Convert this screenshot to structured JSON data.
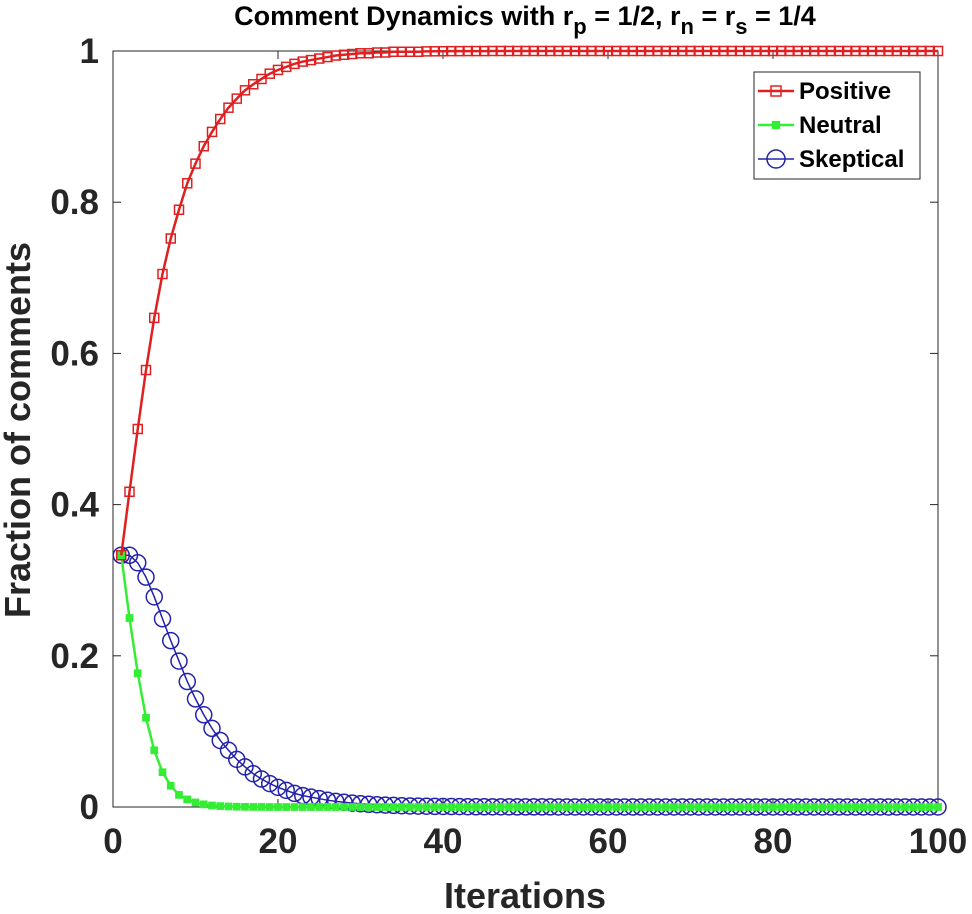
{
  "chart_data": {
    "type": "line",
    "title": {
      "prefix": "Comment Dynamics with r",
      "sub_p": "p",
      "mid1": " = 1/2, r",
      "sub_n": "n",
      "mid2": " = r",
      "sub_s": "s",
      "suffix": " = 1/4"
    },
    "xlabel": "Iterations",
    "ylabel": "Fraction of comments",
    "xlim": [
      0,
      100
    ],
    "ylim": [
      0,
      1
    ],
    "xticks": [
      0,
      20,
      40,
      60,
      80,
      100
    ],
    "yticks": [
      0,
      0.2,
      0.4,
      0.6,
      0.8,
      1
    ],
    "ytick_labels": [
      "0",
      "0.2",
      "0.4",
      "0.6",
      "0.8",
      "1"
    ],
    "grid": false,
    "box": true,
    "legend_position": "top-right",
    "x_points": "1 to 100, step 1",
    "series": [
      {
        "name": "Positive",
        "color": "#e02020",
        "marker": "square",
        "line_width": 2.5,
        "values": [
          0.333,
          0.417,
          0.5,
          0.578,
          0.647,
          0.705,
          0.752,
          0.79,
          0.825,
          0.851,
          0.874,
          0.893,
          0.91,
          0.925,
          0.937,
          0.948,
          0.956,
          0.963,
          0.97,
          0.975,
          0.979,
          0.983,
          0.986,
          0.988,
          0.99,
          0.992,
          0.994,
          0.995,
          0.996,
          0.997,
          0.997,
          0.998,
          0.998,
          0.999,
          0.999,
          0.999,
          0.999,
          0.9995,
          0.9996,
          0.9997,
          0.9998,
          0.9998,
          0.9999,
          0.9999,
          0.9999,
          1,
          1,
          1,
          1,
          1,
          1,
          1,
          1,
          1,
          1,
          1,
          1,
          1,
          1,
          1,
          1,
          1,
          1,
          1,
          1,
          1,
          1,
          1,
          1,
          1,
          1,
          1,
          1,
          1,
          1,
          1,
          1,
          1,
          1,
          1,
          1,
          1,
          1,
          1,
          1,
          1,
          1,
          1,
          1,
          1,
          1,
          1,
          1,
          1,
          1,
          1,
          1,
          1,
          1,
          1
        ]
      },
      {
        "name": "Neutral",
        "color": "#33ee33",
        "marker": "filled-square",
        "line_width": 2.5,
        "values": [
          0.333,
          0.25,
          0.177,
          0.118,
          0.075,
          0.046,
          0.028,
          0.016,
          0.01,
          0.006,
          0.0035,
          0.002,
          0.0012,
          0.0007,
          0.0004,
          0.0002,
          0.0001,
          0.0001,
          0,
          0,
          0,
          0,
          0,
          0,
          0,
          0,
          0,
          0,
          0,
          0,
          0,
          0,
          0,
          0,
          0,
          0,
          0,
          0,
          0,
          0,
          0,
          0,
          0,
          0,
          0,
          0,
          0,
          0,
          0,
          0,
          0,
          0,
          0,
          0,
          0,
          0,
          0,
          0,
          0,
          0,
          0,
          0,
          0,
          0,
          0,
          0,
          0,
          0,
          0,
          0,
          0,
          0,
          0,
          0,
          0,
          0,
          0,
          0,
          0,
          0,
          0,
          0,
          0,
          0,
          0,
          0,
          0,
          0,
          0,
          0,
          0,
          0,
          0,
          0,
          0,
          0,
          0,
          0,
          0,
          0
        ]
      },
      {
        "name": "Skeptical",
        "color": "#2222aa",
        "marker": "circle",
        "line_width": 1.5,
        "values": [
          0.333,
          0.333,
          0.323,
          0.304,
          0.278,
          0.249,
          0.22,
          0.193,
          0.166,
          0.143,
          0.122,
          0.104,
          0.088,
          0.075,
          0.063,
          0.053,
          0.044,
          0.037,
          0.031,
          0.026,
          0.022,
          0.018,
          0.015,
          0.013,
          0.011,
          0.009,
          0.0075,
          0.0063,
          0.0052,
          0.0043,
          0.0036,
          0.003,
          0.0025,
          0.0021,
          0.0017,
          0.0014,
          0.0012,
          0.001,
          0.0008,
          0.0007,
          0.0006,
          0.0005,
          0.0004,
          0.0003,
          0.0003,
          0.0002,
          0.0002,
          0.0002,
          0.0001,
          0.0001,
          0.0001,
          0.0001,
          0.0001,
          0,
          0,
          0,
          0,
          0,
          0,
          0,
          0,
          0,
          0,
          0,
          0,
          0,
          0,
          0,
          0,
          0,
          0,
          0,
          0,
          0,
          0,
          0,
          0,
          0,
          0,
          0,
          0,
          0,
          0,
          0,
          0,
          0,
          0,
          0,
          0,
          0,
          0,
          0,
          0,
          0,
          0,
          0,
          0,
          0,
          0,
          0
        ]
      }
    ]
  }
}
